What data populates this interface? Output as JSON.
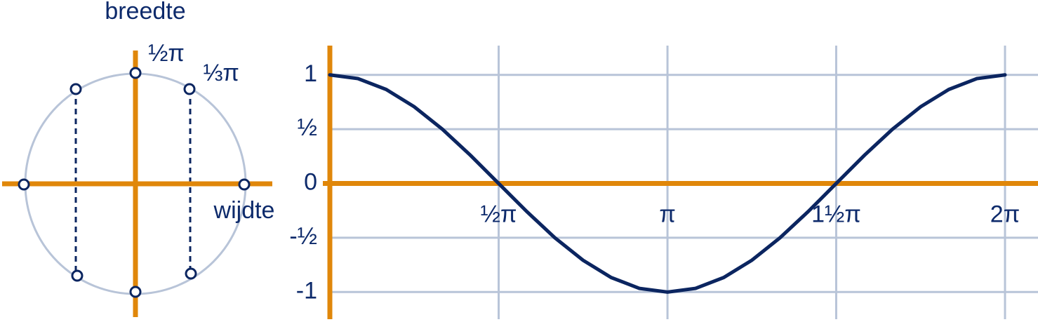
{
  "unit_circle": {
    "y_axis_label": "breedte",
    "x_axis_label": "wijdte",
    "angle_labels": [
      "½π",
      "⅓π"
    ]
  },
  "chart_data": {
    "type": "line",
    "x": [
      0,
      0.262,
      0.524,
      0.785,
      1.047,
      1.309,
      1.571,
      1.833,
      2.094,
      2.356,
      2.618,
      2.88,
      3.142,
      3.403,
      3.665,
      3.927,
      4.189,
      4.451,
      4.712,
      4.974,
      5.236,
      5.498,
      5.76,
      6.021,
      6.283
    ],
    "values": [
      1,
      0.966,
      0.866,
      0.707,
      0.5,
      0.259,
      0,
      -0.259,
      -0.5,
      -0.707,
      -0.866,
      -0.966,
      -1,
      -0.966,
      -0.866,
      -0.707,
      -0.5,
      -0.259,
      0,
      0.259,
      0.5,
      0.707,
      0.866,
      0.966,
      1
    ],
    "color": "#0b2560",
    "xlim": [
      0,
      6.59
    ],
    "ylim": [
      -1.25,
      1.27
    ],
    "xticks": [
      {
        "value": 1.571,
        "label": "½π"
      },
      {
        "value": 3.142,
        "label": "π"
      },
      {
        "value": 4.712,
        "label": "1½π"
      },
      {
        "value": 6.283,
        "label": "2π"
      }
    ],
    "yticks": [
      -1,
      {
        "value": -0.5,
        "label": "-½"
      },
      0,
      {
        "value": 0.5,
        "label": "½"
      },
      1
    ],
    "grid": true
  }
}
